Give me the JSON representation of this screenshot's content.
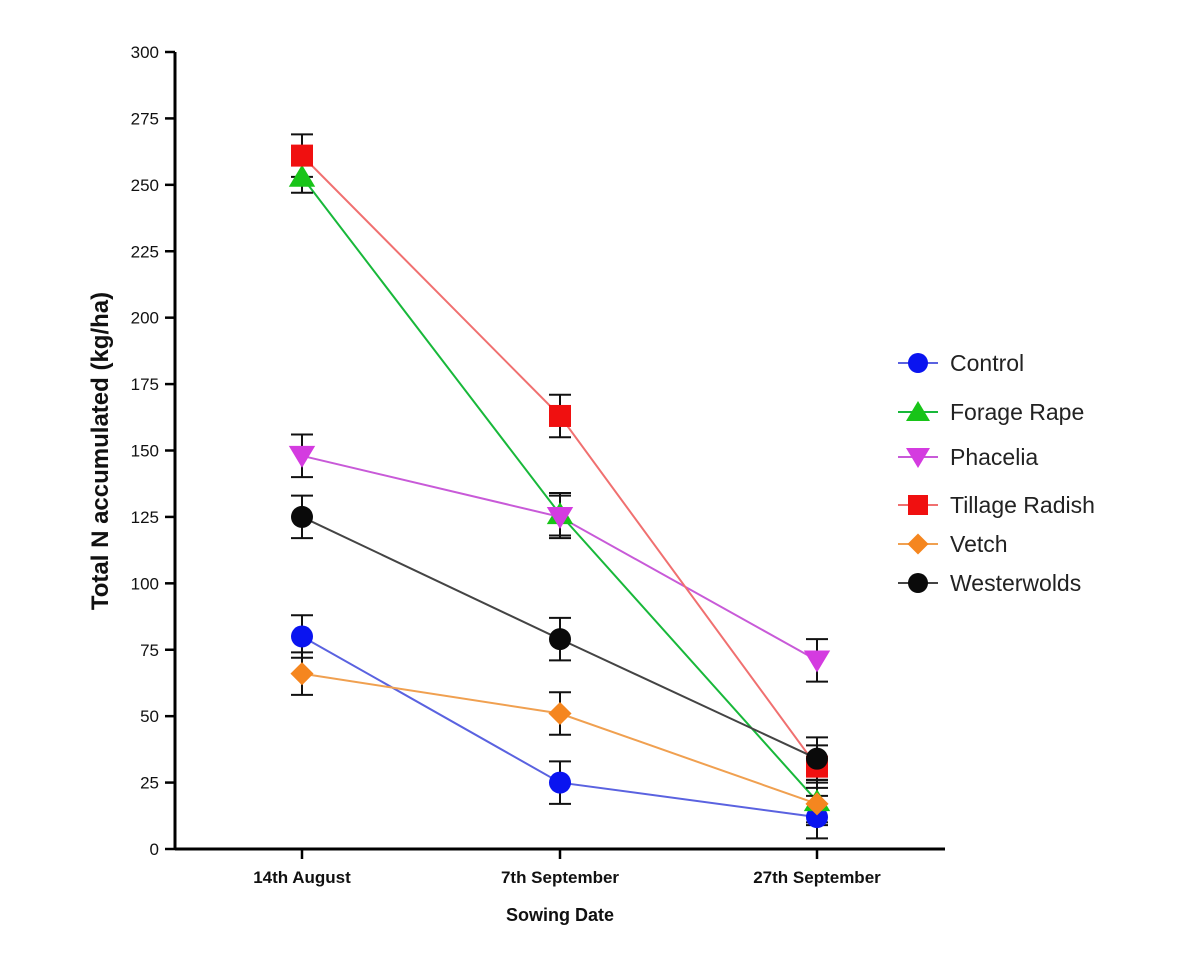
{
  "chart_data": {
    "type": "line",
    "title": "",
    "xlabel": "Sowing Date",
    "ylabel": "Total N accumulated (kg/ha)",
    "categories": [
      "14th August",
      "7th September",
      "27th September"
    ],
    "ylim": [
      0,
      300
    ],
    "yticks": [
      0,
      25,
      50,
      75,
      100,
      125,
      150,
      175,
      200,
      225,
      250,
      275,
      300
    ],
    "grid": false,
    "legend_position": "right",
    "series": [
      {
        "name": "Control",
        "values": [
          80,
          25,
          12
        ],
        "errors": [
          8,
          8,
          8
        ],
        "marker": "circle",
        "color": "#0a14f0",
        "line_color": "#5a62e0"
      },
      {
        "name": "Forage Rape",
        "values": [
          253,
          126,
          18
        ],
        "errors": [
          6,
          8,
          8
        ],
        "marker": "triangle-up",
        "color": "#18c418",
        "line_color": "#18b83a"
      },
      {
        "name": "Phacelia",
        "values": [
          148,
          125,
          71
        ],
        "errors": [
          8,
          8,
          8
        ],
        "marker": "triangle-down",
        "color": "#d43be0",
        "line_color": "#c85ad8"
      },
      {
        "name": "Tillage Radish",
        "values": [
          261,
          163,
          31
        ],
        "errors": [
          8,
          8,
          8
        ],
        "marker": "square",
        "color": "#f01010",
        "line_color": "#f07070"
      },
      {
        "name": "Vetch",
        "values": [
          66,
          51,
          17
        ],
        "errors": [
          8,
          8,
          8
        ],
        "marker": "diamond",
        "color": "#f5861f",
        "line_color": "#f0a050"
      },
      {
        "name": "Westerwolds",
        "values": [
          125,
          79,
          34
        ],
        "errors": [
          8,
          8,
          8
        ],
        "marker": "circle",
        "color": "#0a0a0a",
        "line_color": "#444444"
      }
    ]
  }
}
